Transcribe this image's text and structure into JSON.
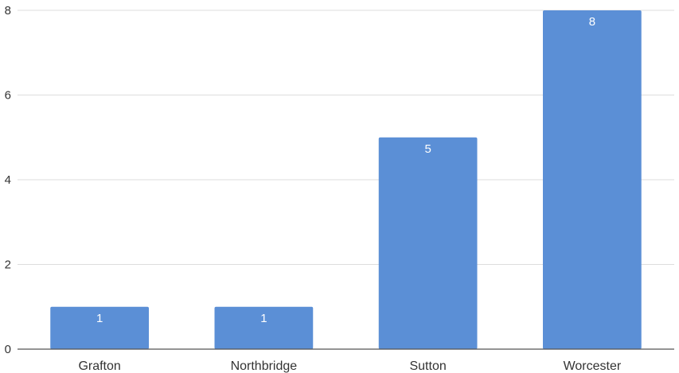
{
  "chart_data": {
    "type": "bar",
    "categories": [
      "Grafton",
      "Northbridge",
      "Sutton",
      "Worcester"
    ],
    "values": [
      1,
      1,
      5,
      8
    ],
    "data_labels": [
      "1",
      "1",
      "5",
      "8"
    ],
    "title": "",
    "xlabel": "",
    "ylabel": "",
    "ylim": [
      0,
      8
    ],
    "y_ticks": [
      0,
      2,
      4,
      6,
      8
    ],
    "y_tick_labels": [
      "0",
      "2",
      "4",
      "6",
      "8"
    ],
    "grid": true,
    "legend": "none",
    "colors": {
      "bar": "#5b8fd6",
      "bar_edge": "#4a7fc8",
      "gridline": "#dddddd",
      "axis": "#555555",
      "text": "#333333",
      "data_label": "#ffffff"
    }
  }
}
